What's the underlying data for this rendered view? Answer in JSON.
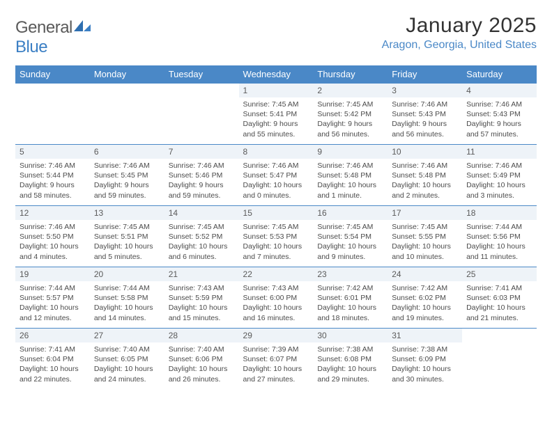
{
  "logo": {
    "general": "General",
    "blue": "Blue"
  },
  "title": "January 2025",
  "location": "Aragon, Georgia, United States",
  "colors": {
    "accent": "#4a88c7",
    "dayband": "#eef3f8",
    "text": "#333333"
  },
  "dayNames": [
    "Sunday",
    "Monday",
    "Tuesday",
    "Wednesday",
    "Thursday",
    "Friday",
    "Saturday"
  ],
  "weeks": [
    [
      null,
      null,
      null,
      {
        "n": "1",
        "sr": "7:45 AM",
        "ss": "5:41 PM",
        "dl": "9 hours and 55 minutes."
      },
      {
        "n": "2",
        "sr": "7:45 AM",
        "ss": "5:42 PM",
        "dl": "9 hours and 56 minutes."
      },
      {
        "n": "3",
        "sr": "7:46 AM",
        "ss": "5:43 PM",
        "dl": "9 hours and 56 minutes."
      },
      {
        "n": "4",
        "sr": "7:46 AM",
        "ss": "5:43 PM",
        "dl": "9 hours and 57 minutes."
      }
    ],
    [
      {
        "n": "5",
        "sr": "7:46 AM",
        "ss": "5:44 PM",
        "dl": "9 hours and 58 minutes."
      },
      {
        "n": "6",
        "sr": "7:46 AM",
        "ss": "5:45 PM",
        "dl": "9 hours and 59 minutes."
      },
      {
        "n": "7",
        "sr": "7:46 AM",
        "ss": "5:46 PM",
        "dl": "9 hours and 59 minutes."
      },
      {
        "n": "8",
        "sr": "7:46 AM",
        "ss": "5:47 PM",
        "dl": "10 hours and 0 minutes."
      },
      {
        "n": "9",
        "sr": "7:46 AM",
        "ss": "5:48 PM",
        "dl": "10 hours and 1 minute."
      },
      {
        "n": "10",
        "sr": "7:46 AM",
        "ss": "5:48 PM",
        "dl": "10 hours and 2 minutes."
      },
      {
        "n": "11",
        "sr": "7:46 AM",
        "ss": "5:49 PM",
        "dl": "10 hours and 3 minutes."
      }
    ],
    [
      {
        "n": "12",
        "sr": "7:46 AM",
        "ss": "5:50 PM",
        "dl": "10 hours and 4 minutes."
      },
      {
        "n": "13",
        "sr": "7:45 AM",
        "ss": "5:51 PM",
        "dl": "10 hours and 5 minutes."
      },
      {
        "n": "14",
        "sr": "7:45 AM",
        "ss": "5:52 PM",
        "dl": "10 hours and 6 minutes."
      },
      {
        "n": "15",
        "sr": "7:45 AM",
        "ss": "5:53 PM",
        "dl": "10 hours and 7 minutes."
      },
      {
        "n": "16",
        "sr": "7:45 AM",
        "ss": "5:54 PM",
        "dl": "10 hours and 9 minutes."
      },
      {
        "n": "17",
        "sr": "7:45 AM",
        "ss": "5:55 PM",
        "dl": "10 hours and 10 minutes."
      },
      {
        "n": "18",
        "sr": "7:44 AM",
        "ss": "5:56 PM",
        "dl": "10 hours and 11 minutes."
      }
    ],
    [
      {
        "n": "19",
        "sr": "7:44 AM",
        "ss": "5:57 PM",
        "dl": "10 hours and 12 minutes."
      },
      {
        "n": "20",
        "sr": "7:44 AM",
        "ss": "5:58 PM",
        "dl": "10 hours and 14 minutes."
      },
      {
        "n": "21",
        "sr": "7:43 AM",
        "ss": "5:59 PM",
        "dl": "10 hours and 15 minutes."
      },
      {
        "n": "22",
        "sr": "7:43 AM",
        "ss": "6:00 PM",
        "dl": "10 hours and 16 minutes."
      },
      {
        "n": "23",
        "sr": "7:42 AM",
        "ss": "6:01 PM",
        "dl": "10 hours and 18 minutes."
      },
      {
        "n": "24",
        "sr": "7:42 AM",
        "ss": "6:02 PM",
        "dl": "10 hours and 19 minutes."
      },
      {
        "n": "25",
        "sr": "7:41 AM",
        "ss": "6:03 PM",
        "dl": "10 hours and 21 minutes."
      }
    ],
    [
      {
        "n": "26",
        "sr": "7:41 AM",
        "ss": "6:04 PM",
        "dl": "10 hours and 22 minutes."
      },
      {
        "n": "27",
        "sr": "7:40 AM",
        "ss": "6:05 PM",
        "dl": "10 hours and 24 minutes."
      },
      {
        "n": "28",
        "sr": "7:40 AM",
        "ss": "6:06 PM",
        "dl": "10 hours and 26 minutes."
      },
      {
        "n": "29",
        "sr": "7:39 AM",
        "ss": "6:07 PM",
        "dl": "10 hours and 27 minutes."
      },
      {
        "n": "30",
        "sr": "7:38 AM",
        "ss": "6:08 PM",
        "dl": "10 hours and 29 minutes."
      },
      {
        "n": "31",
        "sr": "7:38 AM",
        "ss": "6:09 PM",
        "dl": "10 hours and 30 minutes."
      },
      null
    ]
  ]
}
